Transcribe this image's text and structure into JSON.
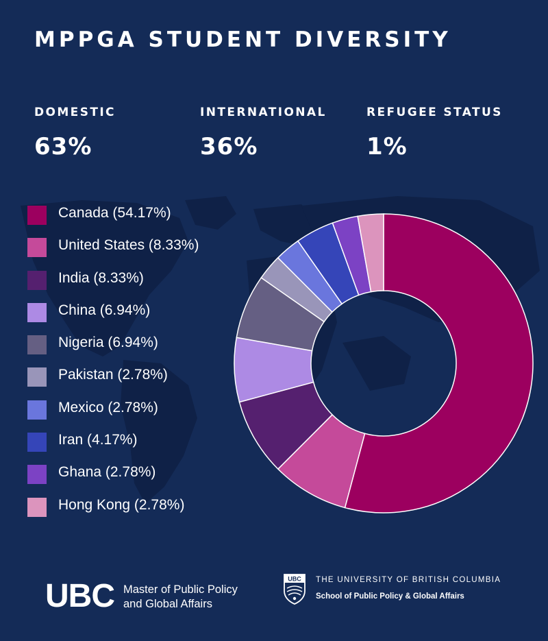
{
  "title": "MPPGA STUDENT DIVERSITY",
  "stats": [
    {
      "label": "DOMESTIC",
      "value": "63%"
    },
    {
      "label": "INTERNATIONAL",
      "value": "36%"
    },
    {
      "label": "REFUGEE STATUS",
      "value": "1%"
    }
  ],
  "chart_data": {
    "type": "pie",
    "style": "donut",
    "legend_position": "left",
    "labels": [
      "Canada (54.17%)",
      "United States (8.33%)",
      "India (8.33%)",
      "China (6.94%)",
      "Nigeria (6.94%)",
      "Pakistan (2.78%)",
      "Mexico (2.78%)",
      "Iran (4.17%)",
      "Ghana (2.78%)",
      "Hong Kong (2.78%)"
    ],
    "categories": [
      "Canada",
      "United States",
      "India",
      "China",
      "Nigeria",
      "Pakistan",
      "Mexico",
      "Iran",
      "Ghana",
      "Hong Kong"
    ],
    "values": [
      54.17,
      8.33,
      8.33,
      6.94,
      6.94,
      2.78,
      2.78,
      4.17,
      2.78,
      2.78
    ],
    "colors": [
      "#9c005f",
      "#c54a9a",
      "#55206f",
      "#ad8ae4",
      "#655f83",
      "#9995b9",
      "#6a76dd",
      "#3545b8",
      "#7c42c4",
      "#dc94bd"
    ]
  },
  "footer": {
    "left_logo": "UBC",
    "left_line1": "Master of Public Policy",
    "left_line2": "and Global Affairs",
    "crest_text": "UBC",
    "right_line1": "THE UNIVERSITY OF BRITISH COLUMBIA",
    "right_line2": "School of Public Policy & Global Affairs"
  }
}
